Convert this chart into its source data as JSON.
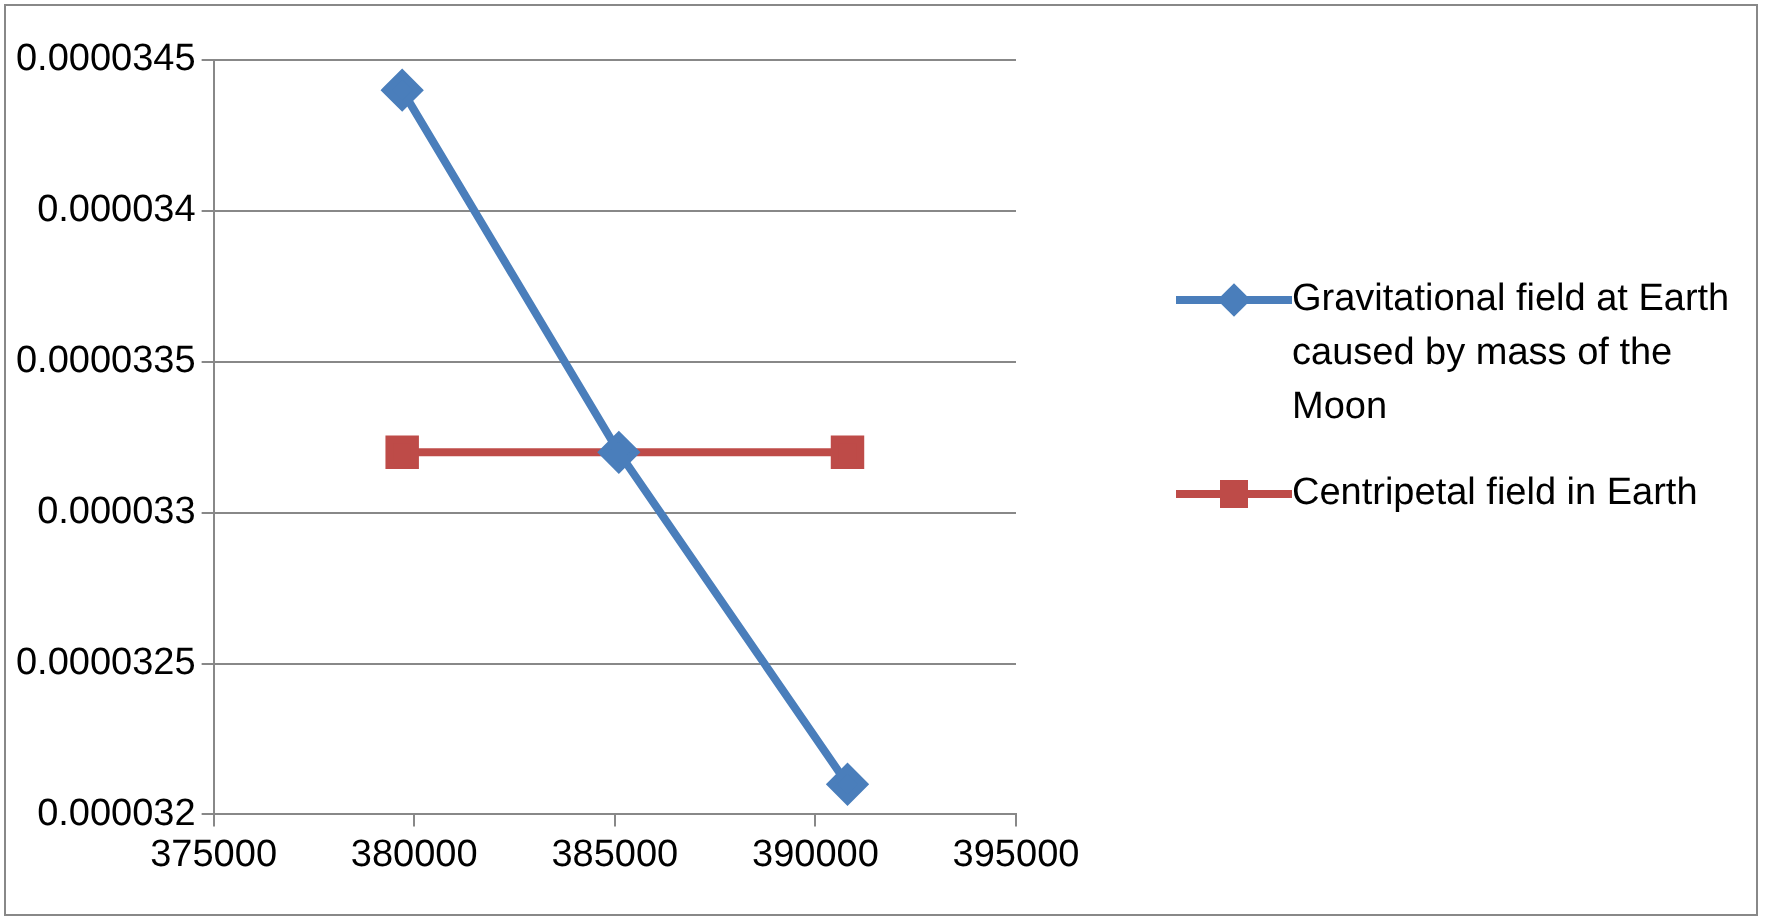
{
  "chart_data": {
    "type": "line",
    "x": [
      379700,
      385100,
      390800
    ],
    "series": [
      {
        "name": "Gravitational field at Earth caused by mass of the Moon",
        "color": "#4a7ebb",
        "marker": "diamond",
        "values": [
          3.44e-05,
          3.32e-05,
          3.21e-05
        ]
      },
      {
        "name": "Centripetal field in Earth",
        "color": "#be4b48",
        "marker": "square",
        "x": [
          379700,
          390800
        ],
        "values": [
          3.32e-05,
          3.32e-05
        ]
      }
    ],
    "xlim": [
      375000,
      395000
    ],
    "xticks": [
      375000,
      380000,
      385000,
      390000,
      395000
    ],
    "ylim": [
      3.2e-05,
      3.45e-05
    ],
    "yticks": [
      {
        "value": 3.2e-05,
        "label": "0.000032"
      },
      {
        "value": 3.25e-05,
        "label": "0.0000325"
      },
      {
        "value": 3.3e-05,
        "label": "0.000033"
      },
      {
        "value": 3.35e-05,
        "label": "0.0000335"
      },
      {
        "value": 3.4e-05,
        "label": "0.000034"
      },
      {
        "value": 3.45e-05,
        "label": "0.0000345"
      }
    ],
    "grid": "y",
    "legend": "right"
  }
}
